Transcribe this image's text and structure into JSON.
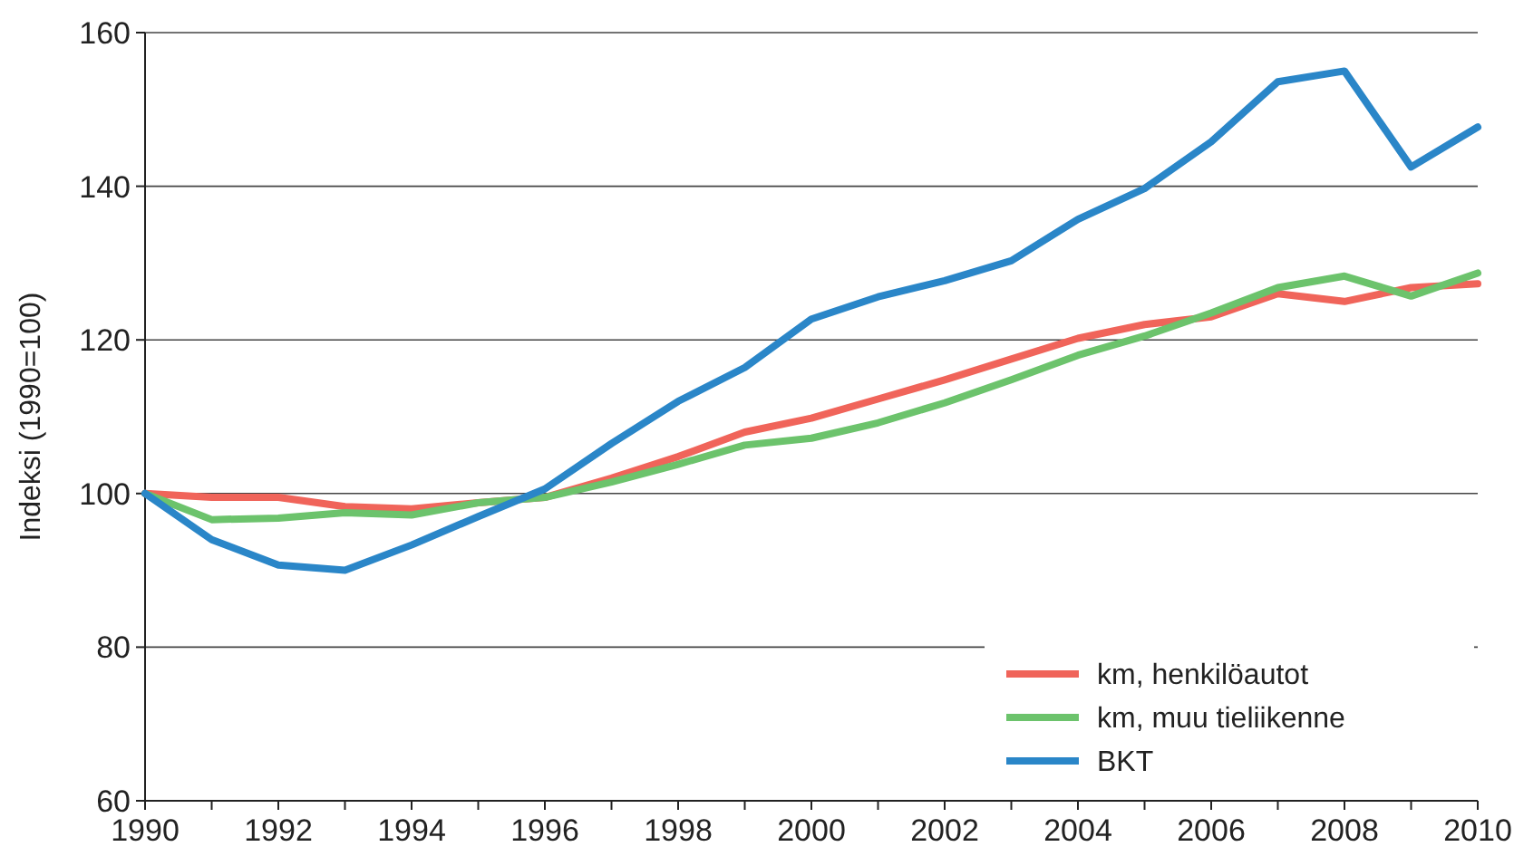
{
  "chart_data": {
    "type": "line",
    "ylabel": "Indeksi (1990=100)",
    "x": [
      1990,
      1991,
      1992,
      1993,
      1994,
      1995,
      1996,
      1997,
      1998,
      1999,
      2000,
      2001,
      2002,
      2003,
      2004,
      2005,
      2006,
      2007,
      2008,
      2009,
      2010
    ],
    "xlim": [
      1990,
      2010
    ],
    "xticks": [
      1990,
      {
        "value": 1991,
        "label": null
      },
      1992,
      {
        "value": 1993,
        "label": null
      },
      1994,
      {
        "value": 1995,
        "label": null
      },
      1996,
      {
        "value": 1997,
        "label": null
      },
      1998,
      {
        "value": 1999,
        "label": null
      },
      2000,
      {
        "value": 2001,
        "label": null
      },
      2002,
      {
        "value": 2003,
        "label": null
      },
      2004,
      {
        "value": 2005,
        "label": null
      },
      2006,
      {
        "value": 2007,
        "label": null
      },
      2008,
      {
        "value": 2009,
        "label": null
      },
      2010
    ],
    "ylim": [
      60,
      160
    ],
    "yticks": [
      60,
      80,
      100,
      120,
      140,
      160
    ],
    "grid": "y",
    "legend": "bottom right",
    "line_style": "solid",
    "marker": "none",
    "series": [
      {
        "name": "km, henkilöautot",
        "color": "#f0645a",
        "values": [
          100,
          99.5,
          99.5,
          98.3,
          98,
          98.8,
          99.5,
          102,
          104.8,
          108,
          109.8,
          112.3,
          114.8,
          117.5,
          120.2,
          122,
          123,
          126,
          125,
          126.8,
          127.3
        ]
      },
      {
        "name": "km, muu tieliikenne",
        "color": "#6cc36c",
        "values": [
          100,
          96.6,
          96.8,
          97.5,
          97.2,
          98.8,
          99.5,
          101.5,
          103.8,
          106.3,
          107.2,
          109.2,
          111.8,
          114.8,
          118,
          120.5,
          123.5,
          126.8,
          128.3,
          125.7,
          128.7
        ]
      },
      {
        "name": "BKT",
        "color": "#2a86c8",
        "values": [
          100,
          94,
          90.7,
          90,
          93.3,
          97,
          100.6,
          106.5,
          112,
          116.4,
          122.7,
          125.6,
          127.7,
          130.3,
          135.7,
          139.7,
          145.8,
          153.6,
          155,
          142.5,
          147.7
        ]
      }
    ]
  }
}
